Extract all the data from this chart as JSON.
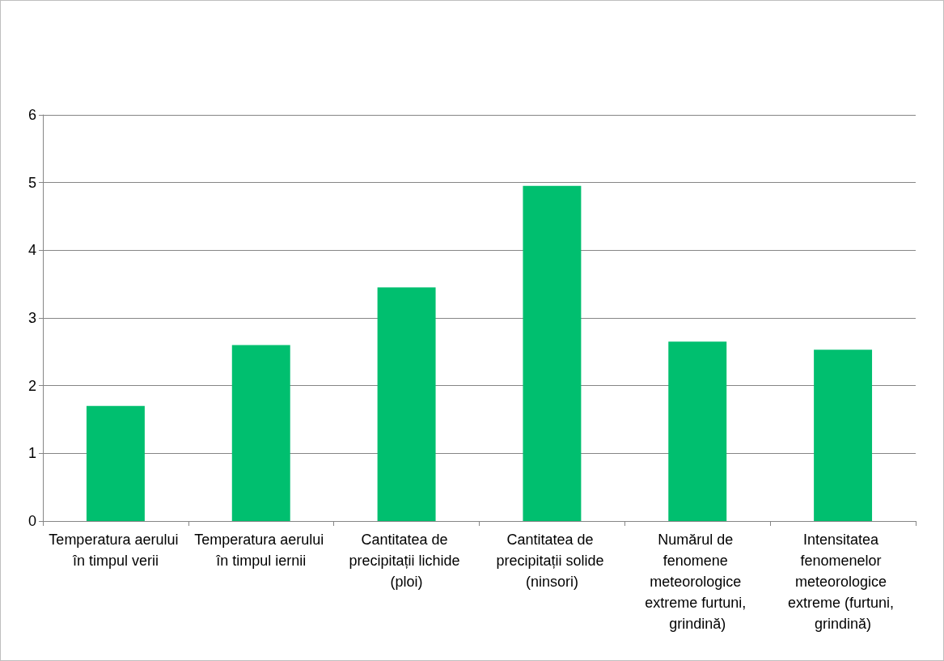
{
  "chart_data": {
    "type": "bar",
    "categories": [
      "Temperatura aerului în timpul verii",
      "Temperatura aerului în timpul iernii",
      "Cantitatea de precipitații lichide (ploi)",
      "Cantitatea de precipitații solide (ninsori)",
      "Numărul de fenomene meteorologice extreme furtuni, grindină)",
      "Intensitatea fenomenelor meteorologice extreme (furtuni, grindină)"
    ],
    "values": [
      1.7,
      2.6,
      3.45,
      4.95,
      2.65,
      2.53
    ],
    "color": "#00bf6f",
    "ylim": [
      0,
      6
    ],
    "yticks": [
      0,
      1,
      2,
      3,
      4,
      5,
      6
    ],
    "grid": "y"
  }
}
